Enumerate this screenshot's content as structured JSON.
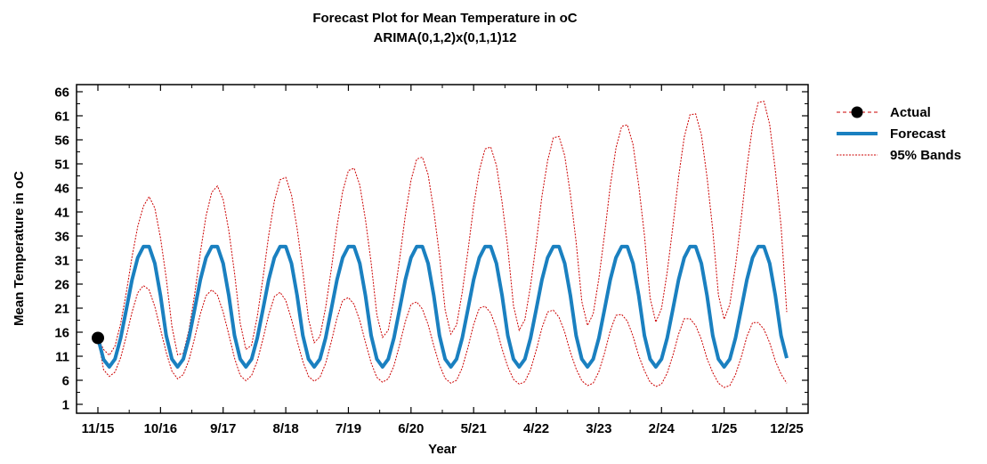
{
  "chart_data": {
    "type": "line",
    "title": "Forecast Plot for Mean Temperature in oC",
    "subtitle": "ARIMA(0,1,2)x(0,1,1)12",
    "xlabel": "Year",
    "ylabel": "Mean Temperature in oC",
    "ylim": [
      1,
      66
    ],
    "yticks": [
      1,
      6,
      11,
      16,
      21,
      26,
      31,
      36,
      41,
      46,
      51,
      56,
      61,
      66
    ],
    "xticks": [
      "11/15",
      "10/16",
      "9/17",
      "8/18",
      "7/19",
      "6/20",
      "5/21",
      "4/22",
      "3/23",
      "2/24",
      "1/25",
      "12/25"
    ],
    "x": [
      "11/15",
      "12/15",
      "1/16",
      "2/16",
      "3/16",
      "4/16",
      "5/16",
      "6/16",
      "7/16",
      "8/16",
      "9/16",
      "10/16",
      "11/16",
      "12/16",
      "1/17",
      "2/17",
      "3/17",
      "4/17",
      "5/17",
      "6/17",
      "7/17",
      "8/17",
      "9/17",
      "10/17",
      "11/17",
      "12/17",
      "1/18",
      "2/18",
      "3/18",
      "4/18",
      "5/18",
      "6/18",
      "7/18",
      "8/18",
      "9/18",
      "10/18",
      "11/18",
      "12/18",
      "1/19",
      "2/19",
      "3/19",
      "4/19",
      "5/19",
      "6/19",
      "7/19",
      "8/19",
      "9/19",
      "10/19",
      "11/19",
      "12/19",
      "1/20",
      "2/20",
      "3/20",
      "4/20",
      "5/20",
      "6/20",
      "7/20",
      "8/20",
      "9/20",
      "10/20",
      "11/20",
      "12/20",
      "1/21",
      "2/21",
      "3/21",
      "4/21",
      "5/21",
      "6/21",
      "7/21",
      "8/21",
      "9/21",
      "10/21",
      "11/21",
      "12/21",
      "1/22",
      "2/22",
      "3/22",
      "4/22",
      "5/22",
      "6/22",
      "7/22",
      "8/22",
      "9/22",
      "10/22",
      "11/22",
      "12/22",
      "1/23",
      "2/23",
      "3/23",
      "4/23",
      "5/23",
      "6/23",
      "7/23",
      "8/23",
      "9/23",
      "10/23",
      "11/23",
      "12/23",
      "1/24",
      "2/24",
      "3/24",
      "4/24",
      "5/24",
      "6/24",
      "7/24",
      "8/24",
      "9/24",
      "10/24",
      "11/24",
      "12/24",
      "1/25",
      "2/25",
      "3/25",
      "4/25",
      "5/25",
      "6/25",
      "7/25",
      "8/25",
      "9/25",
      "10/25",
      "11/25",
      "12/25"
    ],
    "series": [
      {
        "name": "Actual",
        "color": "#000000",
        "x": [
          "11/15"
        ],
        "values": [
          14.8
        ]
      },
      {
        "name": "Forecast",
        "color": "#1a80c0",
        "values": [
          14.8,
          10.3,
          8.8,
          10.4,
          14.8,
          20.8,
          26.9,
          31.5,
          33.8,
          33.8,
          30.3,
          23.6,
          15.3,
          10.4,
          8.8,
          10.4,
          14.8,
          20.8,
          26.9,
          31.5,
          33.8,
          33.8,
          30.3,
          23.6,
          15.3,
          10.4,
          8.8,
          10.4,
          14.8,
          20.8,
          26.9,
          31.5,
          33.8,
          33.8,
          30.3,
          23.6,
          15.3,
          10.4,
          8.8,
          10.4,
          14.8,
          20.8,
          26.9,
          31.5,
          33.8,
          33.8,
          30.3,
          23.6,
          15.3,
          10.4,
          8.8,
          10.4,
          14.8,
          20.8,
          26.9,
          31.5,
          33.8,
          33.8,
          30.3,
          23.6,
          15.3,
          10.4,
          8.8,
          10.4,
          14.8,
          20.8,
          26.9,
          31.5,
          33.8,
          33.8,
          30.3,
          23.6,
          15.3,
          10.4,
          8.8,
          10.4,
          14.8,
          20.8,
          26.9,
          31.5,
          33.8,
          33.8,
          30.3,
          23.6,
          15.3,
          10.4,
          8.8,
          10.4,
          14.8,
          20.8,
          26.9,
          31.5,
          33.8,
          33.8,
          30.3,
          23.6,
          15.3,
          10.4,
          8.8,
          10.4,
          14.8,
          20.8,
          26.9,
          31.5,
          33.8,
          33.8,
          30.3,
          23.6,
          15.3,
          10.4,
          8.8,
          10.4,
          14.8,
          20.8,
          26.9,
          31.5,
          33.8,
          33.8,
          30.3,
          23.6,
          15.3,
          10.6
        ]
      },
      {
        "name": "95% Bands (upper)",
        "color": "#cc0000",
        "values": [
          14.8,
          12.4,
          11.2,
          13.1,
          17.8,
          24.3,
          31.7,
          38.0,
          42.2,
          44.2,
          41.8,
          35.6,
          27.3,
          17.2,
          11.3,
          11.6,
          16.5,
          23.9,
          32.6,
          40.2,
          45.1,
          46.4,
          43.6,
          37.1,
          28.3,
          17.9,
          12.4,
          13.3,
          19.3,
          27.3,
          36.1,
          43.3,
          47.7,
          48.2,
          44.6,
          37.5,
          28.6,
          18.7,
          13.8,
          15.1,
          21.1,
          29.1,
          38.0,
          45.3,
          49.6,
          50.1,
          46.6,
          39.4,
          30.4,
          19.6,
          14.9,
          16.4,
          22.9,
          31.2,
          40.3,
          47.6,
          52.0,
          52.4,
          48.8,
          41.3,
          32.0,
          20.6,
          15.6,
          17.5,
          24.3,
          32.9,
          42.2,
          49.6,
          54.1,
          54.5,
          50.7,
          43.0,
          33.5,
          21.5,
          16.4,
          18.6,
          25.7,
          34.6,
          44.3,
          51.7,
          56.4,
          56.7,
          52.7,
          44.6,
          34.8,
          22.4,
          17.4,
          19.8,
          27.2,
          36.4,
          46.4,
          54.3,
          58.8,
          59.1,
          55.0,
          46.5,
          36.2,
          23.1,
          18.1,
          20.9,
          28.5,
          38.0,
          48.3,
          56.6,
          61.2,
          61.4,
          57.1,
          48.2,
          37.3,
          23.7,
          18.7,
          21.8,
          29.8,
          39.6,
          50.3,
          58.9,
          63.8,
          64.0,
          59.2,
          49.6,
          38.1,
          20.2
        ]
      },
      {
        "name": "95% Bands (lower)",
        "color": "#cc0000",
        "values": [
          14.8,
          8.2,
          6.8,
          7.7,
          10.7,
          15.2,
          20.2,
          24.2,
          25.7,
          24.8,
          21.3,
          16.6,
          11.8,
          7.9,
          6.3,
          7.2,
          10.2,
          14.8,
          19.8,
          23.6,
          24.8,
          23.7,
          20.2,
          15.5,
          10.6,
          7.0,
          5.9,
          7.0,
          10.0,
          14.6,
          19.6,
          23.4,
          24.3,
          22.6,
          18.7,
          14.2,
          9.9,
          6.8,
          5.8,
          6.6,
          9.5,
          14.0,
          19.0,
          22.6,
          23.2,
          21.8,
          18.4,
          13.9,
          9.6,
          6.6,
          5.6,
          6.3,
          9.0,
          13.4,
          18.2,
          21.8,
          22.3,
          20.8,
          17.6,
          13.2,
          9.2,
          6.4,
          5.4,
          6.0,
          8.6,
          12.8,
          17.6,
          21.0,
          21.4,
          20.0,
          16.8,
          12.5,
          8.8,
          6.2,
          5.2,
          5.7,
          8.2,
          12.3,
          16.9,
          20.2,
          20.6,
          19.1,
          16.0,
          11.8,
          8.4,
          5.9,
          4.9,
          5.4,
          7.8,
          11.7,
          16.3,
          19.5,
          19.7,
          18.3,
          15.2,
          11.1,
          8.0,
          5.6,
          4.7,
          5.2,
          7.5,
          11.2,
          15.6,
          18.8,
          18.8,
          17.4,
          14.5,
          10.5,
          7.6,
          5.4,
          4.5,
          4.9,
          7.2,
          10.8,
          15.1,
          18.0,
          18.0,
          16.6,
          13.8,
          10.0,
          7.3,
          5.4
        ]
      }
    ],
    "legend": {
      "position": "right",
      "entries": [
        "Actual",
        "Forecast",
        "95% Bands"
      ]
    },
    "grid": false
  }
}
